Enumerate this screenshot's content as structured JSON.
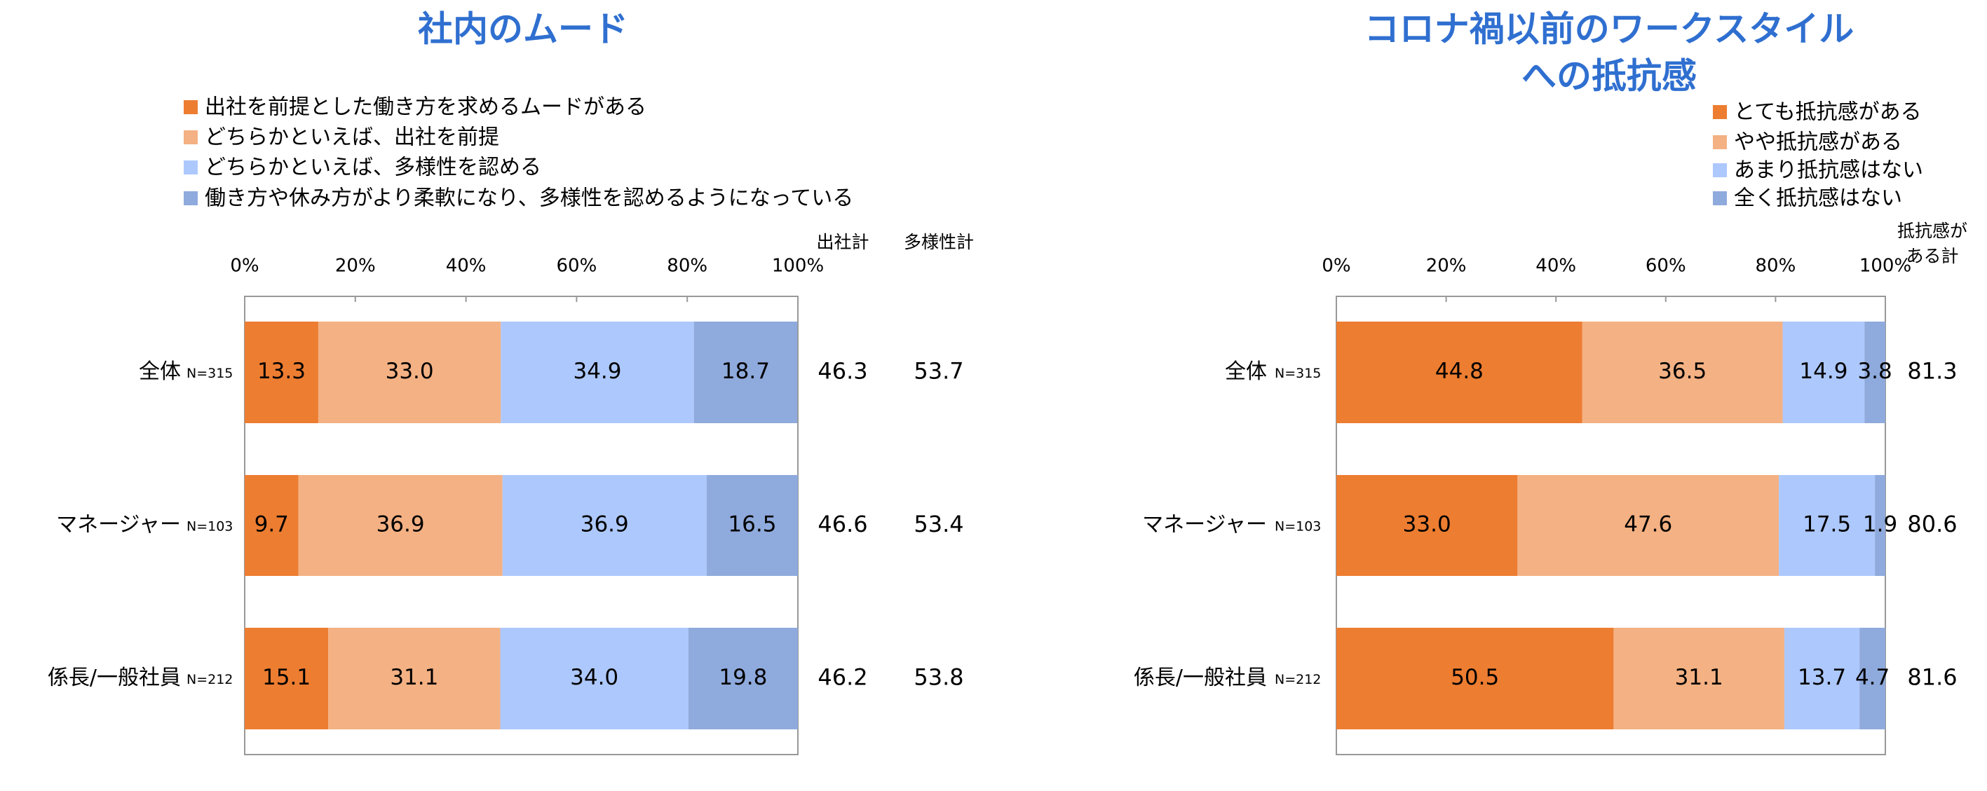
{
  "chart_data": [
    {
      "type": "stacked-bar-horizontal",
      "title_lines": [
        "社内のムード"
      ],
      "categories": [
        "全体",
        "マネージャー",
        "係長/一般社員"
      ],
      "sample_sizes": [
        "N=315",
        "N=103",
        "N=212"
      ],
      "xlim": [
        0,
        100
      ],
      "xticks": [
        {
          "value": 0,
          "label": "0%"
        },
        {
          "value": 20,
          "label": "20%"
        },
        {
          "value": 40,
          "label": "40%"
        },
        {
          "value": 60,
          "label": "60%"
        },
        {
          "value": 80,
          "label": "80%"
        },
        {
          "value": 100,
          "label": "100%"
        }
      ],
      "series": [
        {
          "name": "出社を前提とした働き方を求めるムードがある",
          "color": "#ed7d31",
          "values": [
            13.3,
            9.7,
            15.1
          ],
          "value_labels": [
            "13.3",
            "9.7",
            "15.1"
          ]
        },
        {
          "name": "どちらかといえば、出社を前提",
          "color": "#f4b183",
          "values": [
            33.0,
            36.9,
            31.1
          ],
          "value_labels": [
            "33.0",
            "36.9",
            "31.1"
          ]
        },
        {
          "name": "どちらかといえば、多様性を認める",
          "color": "#adc8fd",
          "values": [
            34.9,
            36.9,
            34.0
          ],
          "value_labels": [
            "34.9",
            "36.9",
            "34.0"
          ]
        },
        {
          "name": "働き方や休み方がより柔軟になり、多様性を認めるようになっている",
          "color": "#8faadc",
          "values": [
            18.7,
            16.5,
            19.8
          ],
          "value_labels": [
            "18.7",
            "16.5",
            "19.8"
          ]
        }
      ],
      "totals": [
        {
          "header_lines": [
            "出社計"
          ],
          "values": [
            46.3,
            46.6,
            46.2
          ]
        },
        {
          "header_lines": [
            "多様性計"
          ],
          "values": [
            53.7,
            53.4,
            53.8
          ]
        }
      ]
    },
    {
      "type": "stacked-bar-horizontal",
      "title_lines": [
        "コロナ禍以前のワークスタイル",
        "への抵抗感"
      ],
      "categories": [
        "全体",
        "マネージャー",
        "係長/一般社員"
      ],
      "sample_sizes": [
        "N=315",
        "N=103",
        "N=212"
      ],
      "xlim": [
        0,
        100
      ],
      "xticks": [
        {
          "value": 0,
          "label": "0%"
        },
        {
          "value": 20,
          "label": "20%"
        },
        {
          "value": 40,
          "label": "40%"
        },
        {
          "value": 60,
          "label": "60%"
        },
        {
          "value": 80,
          "label": "80%"
        },
        {
          "value": 100,
          "label": "100%"
        }
      ],
      "series": [
        {
          "name": "とても抵抗感がある",
          "color": "#ed7d31",
          "values": [
            44.8,
            33.0,
            50.5
          ],
          "value_labels": [
            "44.8",
            "33.0",
            "50.5"
          ]
        },
        {
          "name": "やや抵抗感がある",
          "color": "#f4b183",
          "values": [
            36.5,
            47.6,
            31.1
          ],
          "value_labels": [
            "36.5",
            "47.6",
            "31.1"
          ]
        },
        {
          "name": "あまり抵抗感はない",
          "color": "#adc8fd",
          "values": [
            14.9,
            17.5,
            13.7
          ],
          "value_labels": [
            "14.9",
            "17.5",
            "13.7"
          ]
        },
        {
          "name": "全く抵抗感はない",
          "color": "#8faadc",
          "values": [
            3.8,
            1.9,
            4.7
          ],
          "value_labels": [
            "3.8",
            "1.9",
            "4.7"
          ]
        }
      ],
      "totals": [
        {
          "header_lines": [
            "抵抗感が",
            "ある計"
          ],
          "values": [
            81.3,
            80.6,
            81.6
          ]
        }
      ]
    }
  ]
}
